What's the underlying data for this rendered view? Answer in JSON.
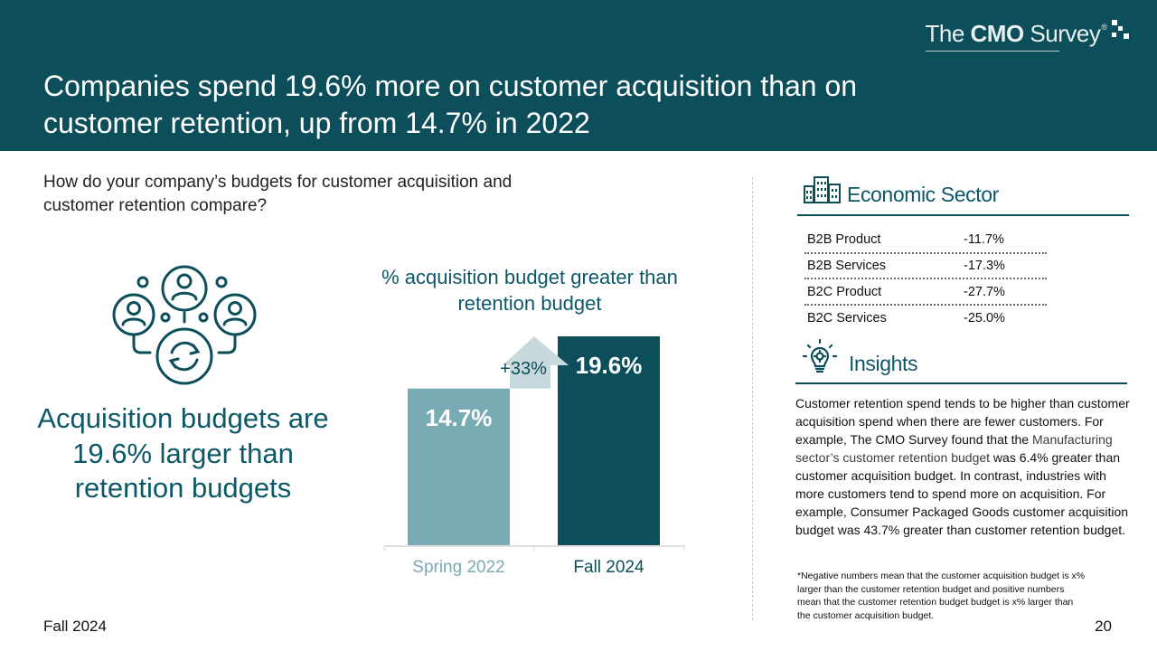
{
  "header": {
    "title": "Companies spend 19.6% more on customer acquisition than on customer retention, up from 14.7% in 2022",
    "brand": {
      "part1": "The ",
      "part2": "CMO",
      "part3": " Survey",
      "reg": "®"
    }
  },
  "question": "How do your company’s budgets for customer acquisition and customer retention compare?",
  "headline_stat": "Acquisition budgets are 19.6% larger than retention budgets",
  "chart_data": {
    "type": "bar",
    "title": "% acquisition budget greater than retention budget",
    "categories": [
      "Spring 2022",
      "Fall 2024"
    ],
    "values": [
      14.7,
      19.6
    ],
    "value_labels": [
      "14.7%",
      "19.6%"
    ],
    "colors": [
      "#79abb4",
      "#0c4e5a"
    ],
    "annotation": "+33%",
    "xlabel": "",
    "ylabel": "",
    "ylim": [
      0,
      19.6
    ]
  },
  "sector": {
    "heading": "Economic Sector",
    "rows": [
      {
        "label": "B2B Product",
        "value": "-11.7%"
      },
      {
        "label": "B2B Services",
        "value": "-17.3%"
      },
      {
        "label": "B2C Product",
        "value": "-27.7%"
      },
      {
        "label": "B2C Services",
        "value": "-25.0%"
      }
    ]
  },
  "insights": {
    "heading": "Insights",
    "text_before": "Customer retention spend tends to be higher than customer acquisition spend when there are fewer customers. For example, The CMO Survey found that the ",
    "text_highlight": "Manufacturing sector’s customer retention budget",
    "text_after": " was 6.4% greater than customer acquisition budget. In contrast, industries with more customers tend to spend more on acquisition. For example, Consumer Packaged Goods customer acquisition budget was 43.7% greater than customer retention budget."
  },
  "footnote": "*Negative numbers mean that the customer acquisition budget is x% larger than the customer retention budget and positive numbers mean that the customer retention budget budget is x% larger than the customer acquisition budget.",
  "footer": {
    "date": "Fall 2024",
    "page": "20"
  }
}
